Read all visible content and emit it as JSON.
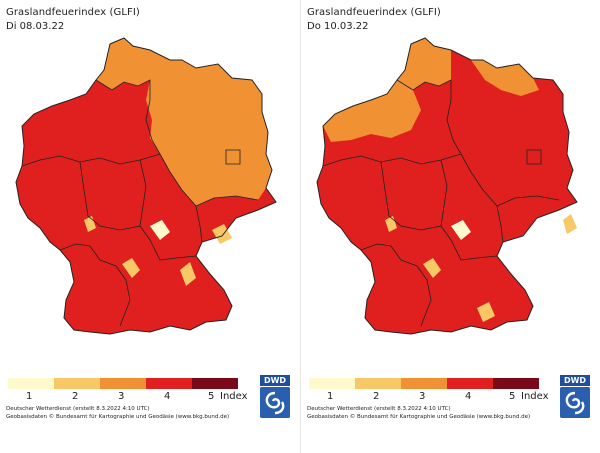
{
  "colors": {
    "class1": "#fffacd",
    "class2": "#f8c766",
    "class3": "#f09233",
    "class4": "#e0201f",
    "class5": "#7a0a1a",
    "border": "#222222"
  },
  "panels": [
    {
      "title": "Graslandfeuerindex (GLFI)",
      "date": "Di 08.03.22",
      "dominant_class": 4,
      "north_east_class": 3
    },
    {
      "title": "Graslandfeuerindex (GLFI)",
      "date": "Do 10.03.22",
      "dominant_class": 4,
      "north_east_class": 4
    }
  ],
  "legend": {
    "labels": [
      "1",
      "2",
      "3",
      "4",
      "5"
    ],
    "unit": "Index"
  },
  "credits": {
    "line1": "Deutscher Wetterdienst (erstellt 8.3.2022 4:10 UTC)",
    "line2": "Geobasisdaten © Bundesamt für Kartographie und Geodäsie (www.bkg.bund.de)"
  },
  "logo": {
    "text": "DWD"
  }
}
